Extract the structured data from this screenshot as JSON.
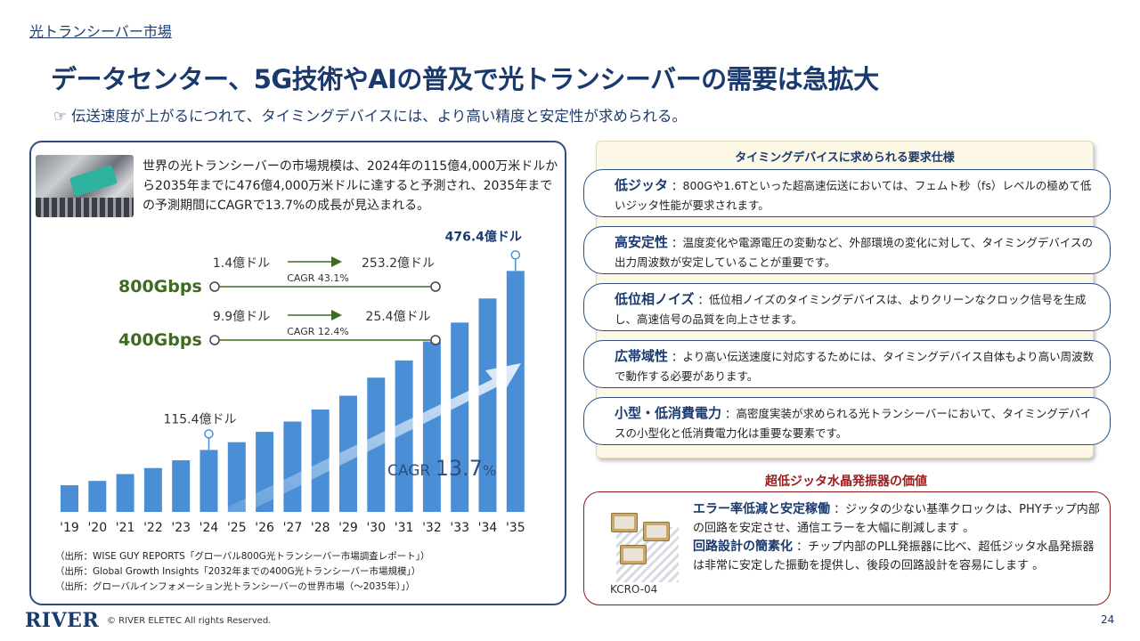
{
  "header": {
    "section_label": "光トランシーバー市場",
    "title": "データセンター、5G技術やAIの普及で光トランシーバーの需要は急拡大",
    "subtitle": "☞ 伝送速度が上がるにつれて、タイミングデバイスには、より高い精度と安定性が求められる。"
  },
  "left": {
    "description": "世界の光トランシーバーの市場規模は、2024年の115億4,000万米ドルから2035年までに476億4,000万米ドルに達すると予測され、2035年までの予測期間にCAGRで13.7%の成長が見込まれる。",
    "sources": [
      "（出所：WISE GUY REPORTS「グローバル800G光トランシーバー市場調査レポート」）",
      "（出所：Global Growth Insights「2032年までの400G光トランシーバー市場規模」）",
      "（出所：グローバルインフォメーション光トランシーバーの世界市場（～2035年）」）"
    ]
  },
  "chart_data": {
    "type": "bar",
    "categories": [
      "'19",
      "'20",
      "'21",
      "'22",
      "'23",
      "'24",
      "'25",
      "'26",
      "'27",
      "'28",
      "'29",
      "'30",
      "'31",
      "'32",
      "'33",
      "'34",
      "'35"
    ],
    "values": [
      6.2,
      7.2,
      8.8,
      10.2,
      12.0,
      14.4,
      16.2,
      18.6,
      21.0,
      23.8,
      27.0,
      31.2,
      35.2,
      39.6,
      44.0,
      49.6,
      56.0
    ],
    "ylim": [
      0,
      60
    ],
    "value_labels": {
      "v2024": "115.4億ドル",
      "v2035": "476.4億ドル"
    },
    "cagr_text": "CAGR",
    "cagr_value": "13.7",
    "cagr_unit": "%",
    "segments": [
      {
        "name": "800Gbps",
        "from": "1.4億ドル",
        "to": "253.2億ドル",
        "cagr": "CAGR 43.1%"
      },
      {
        "name": "400Gbps",
        "from": "9.9億ドル",
        "to": "25.4億ドル",
        "cagr": "CAGR 12.4%"
      }
    ],
    "colors": {
      "bar": "#4a8fd6",
      "segment_label": "#3e6b1f",
      "arrow": "#3e6b1f",
      "marker": "#4a8fd6"
    }
  },
  "spec": {
    "title": "タイミングデバイスに求められる要求仕様",
    "items": [
      {
        "term": "低ジッタ",
        "text": "：800Gや1.6Tといった超高速伝送においては、フェムト秒（fs）レベルの極めて低いジッタ性能が要求されます。"
      },
      {
        "term": "高安定性",
        "text": "：温度変化や電源電圧の変動など、外部環境の変化に対して、タイミングデバイスの出力周波数が安定していることが重要です。"
      },
      {
        "term": "低位相ノイズ",
        "text": "：低位相ノイズのタイミングデバイスは、よりクリーンなクロック信号を生成し、高速信号の品質を向上させます。"
      },
      {
        "term": "広帯域性",
        "text": "：より高い伝送速度に対応するためには、タイミングデバイス自体もより高い周波数で動作する必要があります。"
      },
      {
        "term": "小型・低消費電力",
        "text": "：高密度実装が求められる光トランシーバーにおいて、タイミングデバイスの小型化と低消費電力化は重要な要素です。"
      }
    ]
  },
  "value": {
    "title": "超低ジッタ水晶発振器の価値",
    "product_label": "KCRO-04",
    "items": [
      {
        "term": "エラー率低減と安定稼働",
        "text": "：ジッタの少ない基準クロックは、PHYチップ内部の回路を安定させ、通信エラーを大幅に削減します 。"
      },
      {
        "term": "回路設計の簡素化",
        "text": "：チップ内部のPLL発振器に比べ、超低ジッタ水晶発振器は非常に安定した振動を提供し、後段の回路設計を容易にします 。"
      }
    ]
  },
  "footer": {
    "logo": "RIVER",
    "copyright": "© RIVER ELETEC All rights Reserved.",
    "page": "24"
  }
}
